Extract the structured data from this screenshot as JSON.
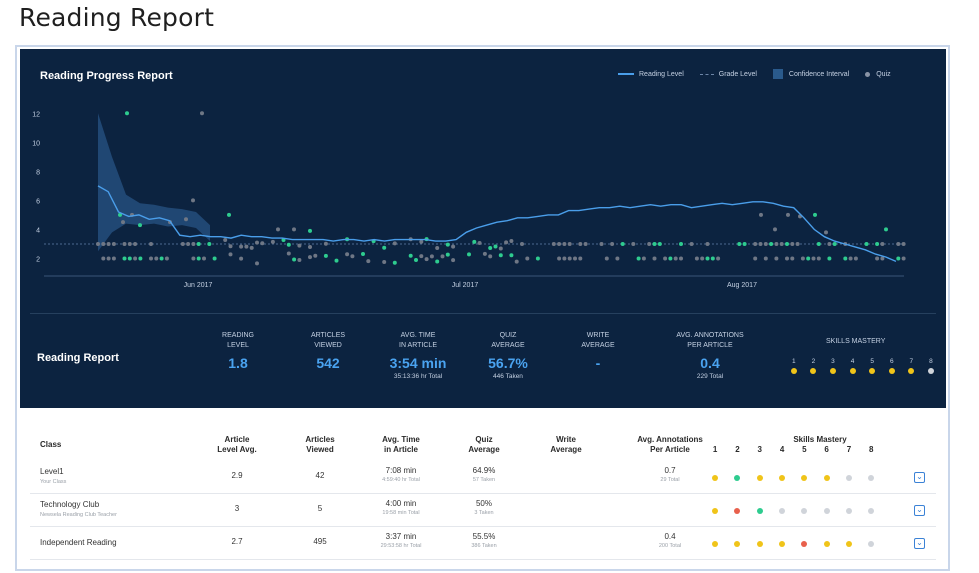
{
  "page": {
    "title": "Reading Report"
  },
  "chart": {
    "title": "Reading Progress Report",
    "legend": {
      "reading_level": "Reading Level",
      "grade_level": "Grade Level",
      "confidence": "Confidence Interval",
      "quiz": "Quiz"
    },
    "y_ticks": [
      "12",
      "10",
      "8",
      "6",
      "4",
      "2"
    ],
    "x_ticks": [
      "Jun 2017",
      "Jul 2017",
      "Aug 2017"
    ]
  },
  "chart_data": {
    "type": "line",
    "ylim": [
      1,
      12.5
    ],
    "y_ticks": [
      2,
      4,
      6,
      8,
      10,
      12
    ],
    "x_ticks": [
      "Jun 2017",
      "Jul 2017",
      "Aug 2017"
    ],
    "grade_level": 3,
    "series": [
      {
        "name": "Reading Level",
        "values": [
          7,
          6.6,
          5.2,
          4.9,
          5.0,
          4.7,
          4.8,
          4.6,
          3.6,
          3.5,
          3.6,
          3.5,
          3.5,
          3.4,
          3.6,
          3.5,
          3.5,
          3.4,
          3.4,
          3.3,
          3.3,
          3.3,
          3.3,
          3.2,
          3.3,
          3.3,
          3.2,
          3.3,
          3.2,
          3.3,
          3.3,
          3.3,
          3.3,
          3.2,
          3.2,
          3.3,
          3.8,
          4.1,
          4.3,
          4.5,
          4.6,
          4.8,
          4.8,
          4.9,
          5.0,
          5.0,
          5.3,
          5.3,
          5.4,
          5.5,
          5.5,
          5.6,
          5.5,
          5.6,
          5.7,
          5.6,
          5.7,
          5.7,
          5.5,
          5.6,
          5.7,
          5.8,
          5.7,
          5.8,
          5.9,
          5.9,
          5.8,
          5.6,
          5.5,
          4.8,
          4.0,
          3.5,
          3.2,
          3.0,
          2.8,
          2.6,
          2.3,
          2.1,
          1.8
        ]
      },
      {
        "name": "Confidence Interval",
        "values_upper": [
          12,
          9,
          6.4,
          5.8,
          5.7,
          5.5,
          5.4,
          5.2,
          4.3
        ],
        "values_lower": [
          2.5,
          3.8,
          4.4,
          4.3,
          4.4,
          4.2,
          4.3,
          4.1,
          3.2
        ]
      }
    ]
  },
  "summary": {
    "title": "Reading Report",
    "metrics": [
      {
        "label1": "READING",
        "label2": "LEVEL",
        "value": "1.8",
        "sub": ""
      },
      {
        "label1": "ARTICLES",
        "label2": "VIEWED",
        "value": "542",
        "sub": ""
      },
      {
        "label1": "AVG. TIME",
        "label2": "IN ARTICLE",
        "value": "3:54 min",
        "sub": "35:13:36 hr Total"
      },
      {
        "label1": "QUIZ",
        "label2": "AVERAGE",
        "value": "56.7%",
        "sub": "446 Taken"
      },
      {
        "label1": "WRITE",
        "label2": "AVERAGE",
        "value": "-",
        "sub": ""
      },
      {
        "label1": "AVG. ANNOTATIONS",
        "label2": "PER ARTICLE",
        "value": "0.4",
        "sub": "229 Total"
      }
    ],
    "skills_title": "SKILLS MASTERY",
    "skills_nums": [
      "1",
      "2",
      "3",
      "4",
      "5",
      "6",
      "7",
      "8"
    ],
    "skills_colors": [
      "#f0c419",
      "#f0c419",
      "#f0c419",
      "#f0c419",
      "#f0c419",
      "#f0c419",
      "#f0c419",
      "#d0d4da"
    ]
  },
  "table": {
    "headers": {
      "class": "Class",
      "level1": "Article",
      "level2": "Level Avg.",
      "viewed1": "Articles",
      "viewed2": "Viewed",
      "time1": "Avg. Time",
      "time2": "in Article",
      "quiz1": "Quiz",
      "quiz2": "Average",
      "write1": "Write",
      "write2": "Average",
      "ann1": "Avg. Annotations",
      "ann2": "Per Article",
      "skills": "Skills Mastery",
      "skills_nums": [
        "1",
        "2",
        "3",
        "4",
        "5",
        "6",
        "7",
        "8"
      ]
    },
    "rows": [
      {
        "name": "Level1",
        "desc": "Your Class",
        "level": "2.9",
        "viewed": "42",
        "time": "7:08 min",
        "time_sub": "4:59:40 hr Total",
        "quiz": "64.9%",
        "quiz_sub": "57 Taken",
        "write": "",
        "ann": "0.7",
        "ann_sub": "29 Total",
        "skills": [
          "#f0c419",
          "#2ecc8f",
          "#f0c419",
          "#f0c419",
          "#f0c419",
          "#f0c419",
          "#d0d4da",
          "#d0d4da"
        ]
      },
      {
        "name": "Technology Club",
        "desc": "Newsela Reading Club Teacher",
        "level": "3",
        "viewed": "5",
        "time": "4:00 min",
        "time_sub": "19:58 min Total",
        "quiz": "50%",
        "quiz_sub": "3 Taken",
        "write": "",
        "ann": "",
        "ann_sub": "",
        "skills": [
          "#f0c419",
          "#e8604c",
          "#2ecc8f",
          "#d0d4da",
          "#d0d4da",
          "#d0d4da",
          "#d0d4da",
          "#d0d4da"
        ]
      },
      {
        "name": "Independent Reading",
        "desc": "",
        "level": "2.7",
        "viewed": "495",
        "time": "3:37 min",
        "time_sub": "29:53:58 hr Total",
        "quiz": "55.5%",
        "quiz_sub": "386 Taken",
        "write": "",
        "ann": "0.4",
        "ann_sub": "200 Total",
        "skills": [
          "#f0c419",
          "#f0c419",
          "#f0c419",
          "#f0c419",
          "#e8604c",
          "#f0c419",
          "#f0c419",
          "#d0d4da"
        ]
      }
    ],
    "expand_glyph": "⌄"
  },
  "colors": {
    "navy": "#0c2340",
    "accent": "#4aa3f0",
    "quiz_green": "#2ecc8f",
    "quiz_gray": "#6f7785"
  }
}
